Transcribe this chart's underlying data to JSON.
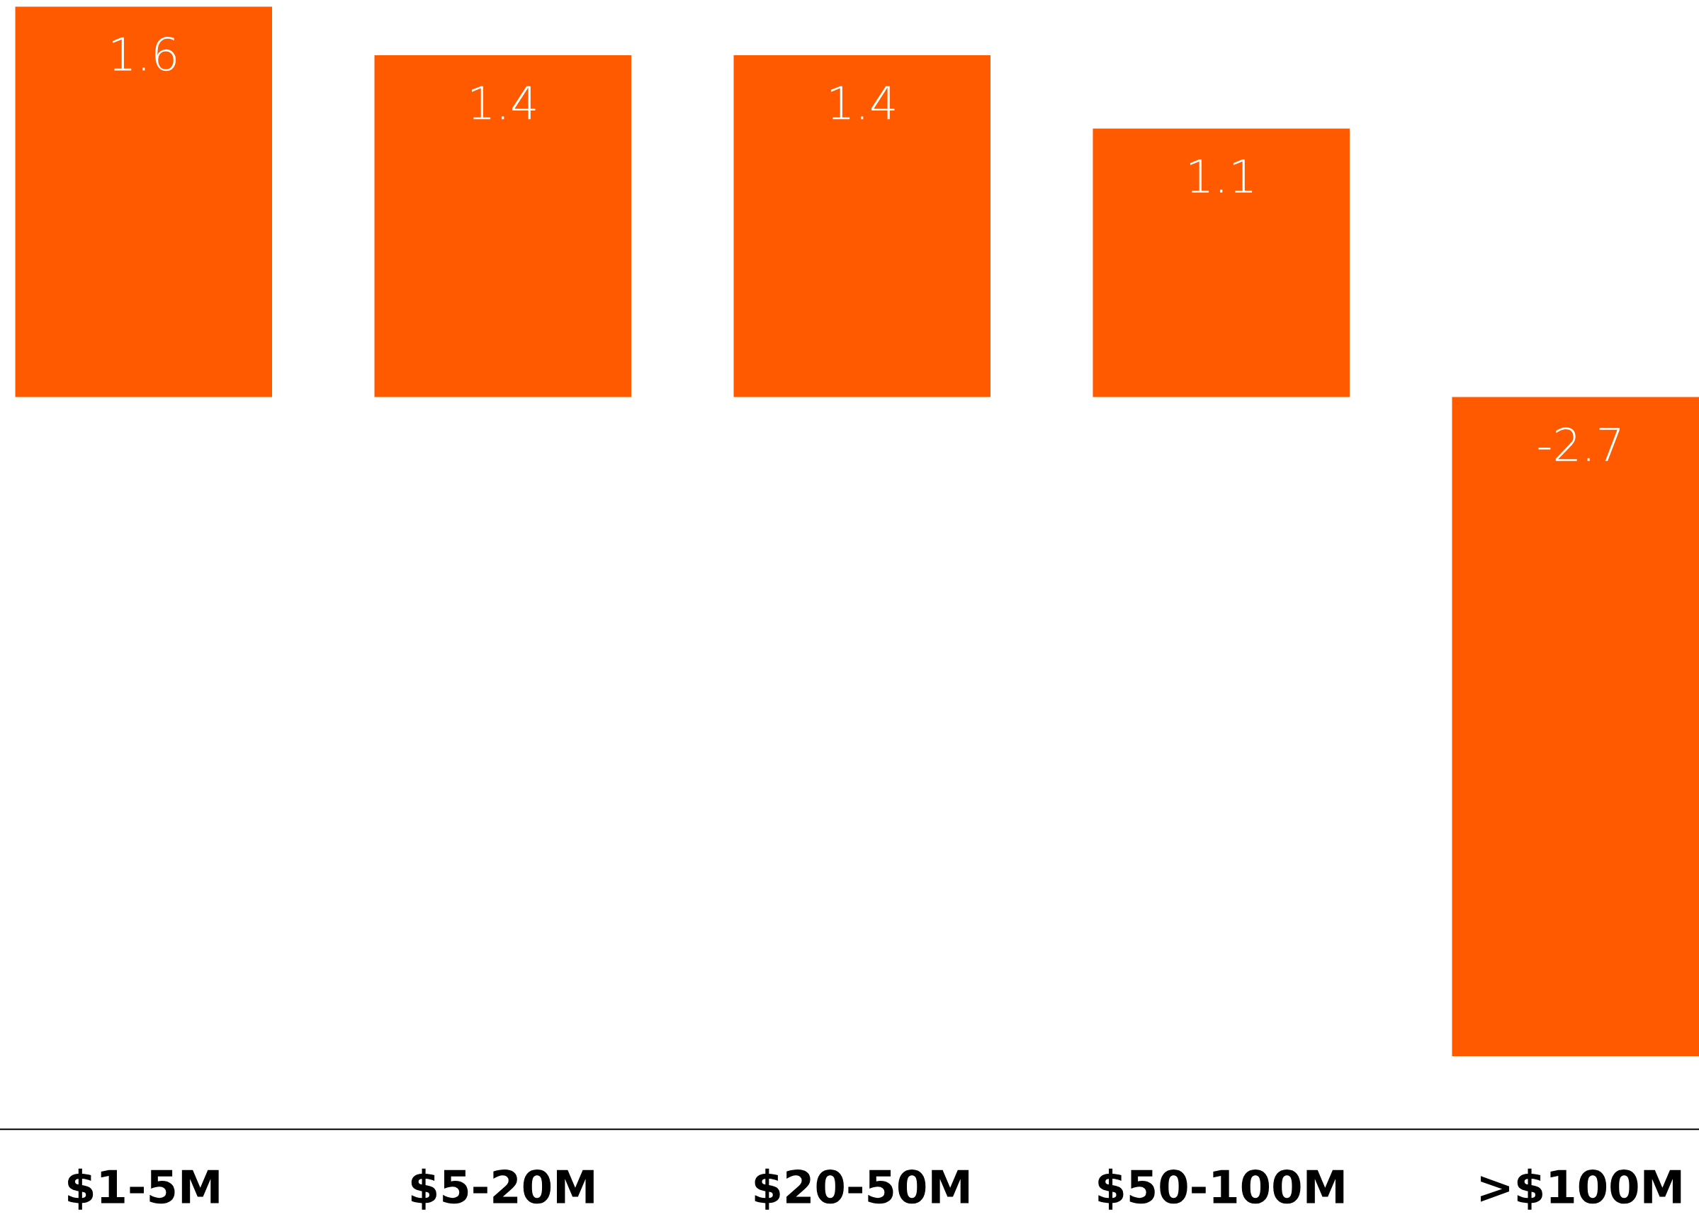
{
  "chart_data": {
    "type": "bar",
    "categories": [
      "$1-5M",
      "$5-20M",
      "$20-50M",
      "$50-100M",
      ">$100M"
    ],
    "values": [
      1.6,
      1.4,
      1.4,
      1.1,
      -2.7
    ],
    "color": "#ff5a00",
    "data_labels": true,
    "ylim": [
      -3.0,
      1.6
    ],
    "tick_labels": "x",
    "grid": false,
    "legend": false
  }
}
